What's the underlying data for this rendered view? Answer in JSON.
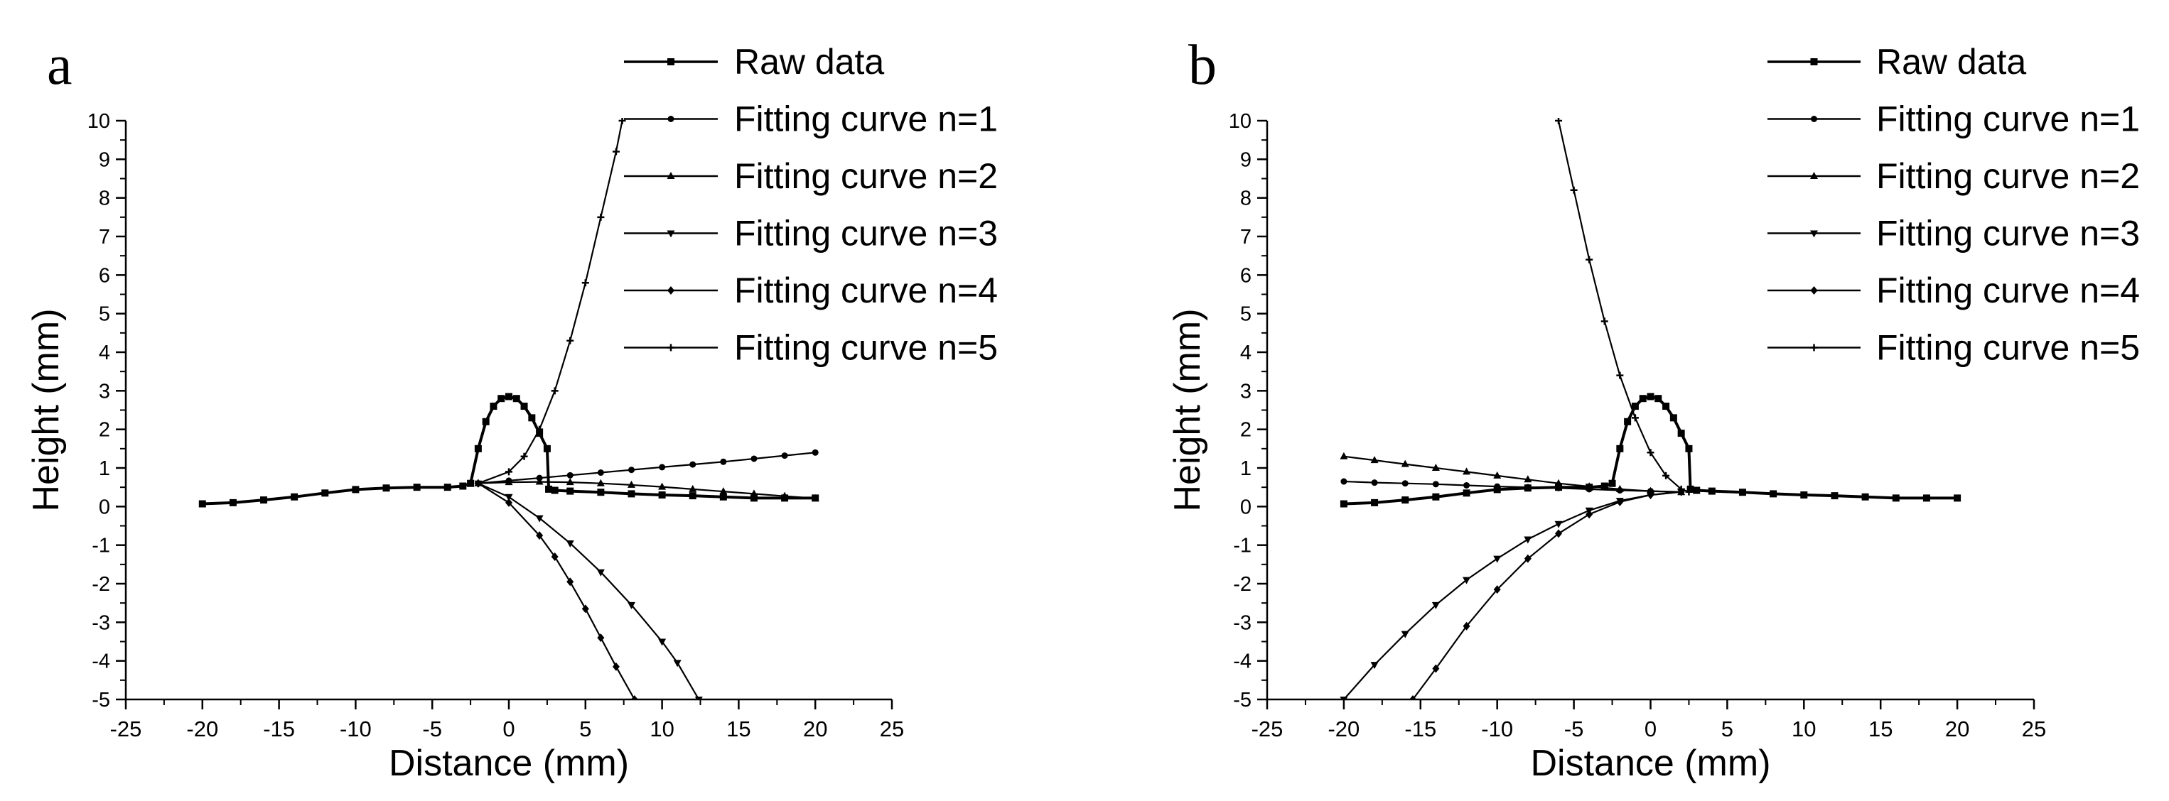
{
  "chart_data": [
    {
      "panel_label": "a",
      "type": "line",
      "xlabel": "Distance (mm)",
      "ylabel": "Height (mm)",
      "xlim": [
        -25,
        25
      ],
      "ylim": [
        -5,
        10
      ],
      "xticks": [
        -25,
        -20,
        -15,
        -10,
        -5,
        0,
        5,
        10,
        15,
        20,
        25
      ],
      "yticks": [
        -5,
        -4,
        -3,
        -2,
        -1,
        0,
        1,
        2,
        3,
        4,
        5,
        6,
        7,
        8,
        9,
        10
      ],
      "legend_position": "top-right",
      "series": [
        {
          "name": "Raw data",
          "marker": "square",
          "x": [
            -20,
            -18,
            -16,
            -14,
            -12,
            -10,
            -8,
            -6,
            -4,
            -3,
            -2.5,
            -2,
            -1.5,
            -1,
            -0.5,
            0,
            0.5,
            1,
            1.5,
            2,
            2.5,
            2.6,
            3,
            4,
            6,
            8,
            10,
            12,
            14,
            16,
            18,
            20
          ],
          "y": [
            0.07,
            0.1,
            0.17,
            0.25,
            0.35,
            0.44,
            0.48,
            0.5,
            0.5,
            0.53,
            0.6,
            1.5,
            2.2,
            2.6,
            2.8,
            2.85,
            2.8,
            2.6,
            2.3,
            1.9,
            1.5,
            0.45,
            0.42,
            0.4,
            0.37,
            0.33,
            0.3,
            0.28,
            0.25,
            0.22,
            0.22,
            0.22
          ]
        },
        {
          "name": "Fitting curve n=1",
          "marker": "dot",
          "x": [
            -2,
            0,
            2,
            4,
            6,
            8,
            10,
            12,
            14,
            16,
            18,
            20
          ],
          "y": [
            0.6,
            0.67,
            0.74,
            0.81,
            0.88,
            0.95,
            1.02,
            1.09,
            1.16,
            1.24,
            1.32,
            1.4
          ]
        },
        {
          "name": "Fitting curve n=2",
          "marker": "tri-up",
          "x": [
            -2,
            0,
            2,
            4,
            6,
            8,
            10,
            12,
            14,
            16,
            18,
            20
          ],
          "y": [
            0.6,
            0.63,
            0.64,
            0.63,
            0.6,
            0.56,
            0.51,
            0.45,
            0.39,
            0.33,
            0.27,
            0.21
          ]
        },
        {
          "name": "Fitting curve n=3",
          "marker": "tri-down",
          "x": [
            -2,
            0,
            2,
            4,
            6,
            8,
            10,
            11,
            12.4
          ],
          "y": [
            0.6,
            0.25,
            -0.3,
            -0.95,
            -1.7,
            -2.55,
            -3.5,
            -4.05,
            -5
          ]
        },
        {
          "name": "Fitting curve n=4",
          "marker": "diamond",
          "x": [
            -2,
            0,
            2,
            3,
            4,
            5,
            6,
            7,
            8.2
          ],
          "y": [
            0.6,
            0.1,
            -0.75,
            -1.3,
            -1.95,
            -2.65,
            -3.4,
            -4.15,
            -5
          ]
        },
        {
          "name": "Fitting curve n=5",
          "marker": "star",
          "x": [
            -2,
            0,
            1,
            2,
            3,
            4,
            5,
            6,
            7,
            7.4
          ],
          "y": [
            0.6,
            0.9,
            1.3,
            2.0,
            3.0,
            4.3,
            5.8,
            7.5,
            9.2,
            10
          ]
        }
      ]
    },
    {
      "panel_label": "b",
      "type": "line",
      "xlabel": "Distance (mm)",
      "ylabel": "Height (mm)",
      "xlim": [
        -25,
        25
      ],
      "ylim": [
        -5,
        10
      ],
      "xticks": [
        -25,
        -20,
        -15,
        -10,
        -5,
        0,
        5,
        10,
        15,
        20,
        25
      ],
      "yticks": [
        -5,
        -4,
        -3,
        -2,
        -1,
        0,
        1,
        2,
        3,
        4,
        5,
        6,
        7,
        8,
        9,
        10
      ],
      "legend_position": "top-right",
      "series": [
        {
          "name": "Raw data",
          "marker": "square",
          "x": [
            -20,
            -18,
            -16,
            -14,
            -12,
            -10,
            -8,
            -6,
            -4,
            -3,
            -2.5,
            -2,
            -1.5,
            -1,
            -0.5,
            0,
            0.5,
            1,
            1.5,
            2,
            2.5,
            2.6,
            3,
            4,
            6,
            8,
            10,
            12,
            14,
            16,
            18,
            20
          ],
          "y": [
            0.07,
            0.1,
            0.17,
            0.25,
            0.35,
            0.44,
            0.48,
            0.5,
            0.5,
            0.53,
            0.6,
            1.5,
            2.2,
            2.6,
            2.8,
            2.85,
            2.8,
            2.6,
            2.3,
            1.9,
            1.5,
            0.45,
            0.42,
            0.4,
            0.37,
            0.33,
            0.3,
            0.28,
            0.25,
            0.22,
            0.22,
            0.22
          ]
        },
        {
          "name": "Fitting curve n=1",
          "marker": "dot",
          "x": [
            -20,
            -18,
            -16,
            -14,
            -12,
            -10,
            -8,
            -6,
            -4,
            -2,
            0,
            2
          ],
          "y": [
            0.65,
            0.62,
            0.6,
            0.58,
            0.55,
            0.52,
            0.5,
            0.48,
            0.45,
            0.42,
            0.4,
            0.38
          ]
        },
        {
          "name": "Fitting curve n=2",
          "marker": "tri-up",
          "x": [
            -20,
            -18,
            -16,
            -14,
            -12,
            -10,
            -8,
            -6,
            -4,
            -2,
            0,
            2
          ],
          "y": [
            1.3,
            1.2,
            1.1,
            1.0,
            0.9,
            0.8,
            0.7,
            0.6,
            0.52,
            0.45,
            0.4,
            0.37
          ]
        },
        {
          "name": "Fitting curve n=3",
          "marker": "tri-down",
          "x": [
            -20,
            -18,
            -16,
            -14,
            -12,
            -10,
            -8,
            -6,
            -4,
            -2,
            0,
            2
          ],
          "y": [
            -5,
            -4.1,
            -3.3,
            -2.55,
            -1.9,
            -1.35,
            -0.85,
            -0.45,
            -0.1,
            0.15,
            0.3,
            0.38
          ]
        },
        {
          "name": "Fitting curve n=4",
          "marker": "diamond",
          "x": [
            -15.5,
            -14,
            -12,
            -10,
            -8,
            -6,
            -4,
            -2,
            0,
            2
          ],
          "y": [
            -5,
            -4.2,
            -3.1,
            -2.15,
            -1.35,
            -0.7,
            -0.2,
            0.12,
            0.3,
            0.38
          ]
        },
        {
          "name": "Fitting curve n=5",
          "marker": "star",
          "x": [
            -6,
            -5,
            -4,
            -3,
            -2,
            -1,
            0,
            1,
            2,
            2.5
          ],
          "y": [
            10,
            8.2,
            6.4,
            4.8,
            3.4,
            2.3,
            1.4,
            0.8,
            0.45,
            0.38
          ]
        }
      ]
    }
  ]
}
